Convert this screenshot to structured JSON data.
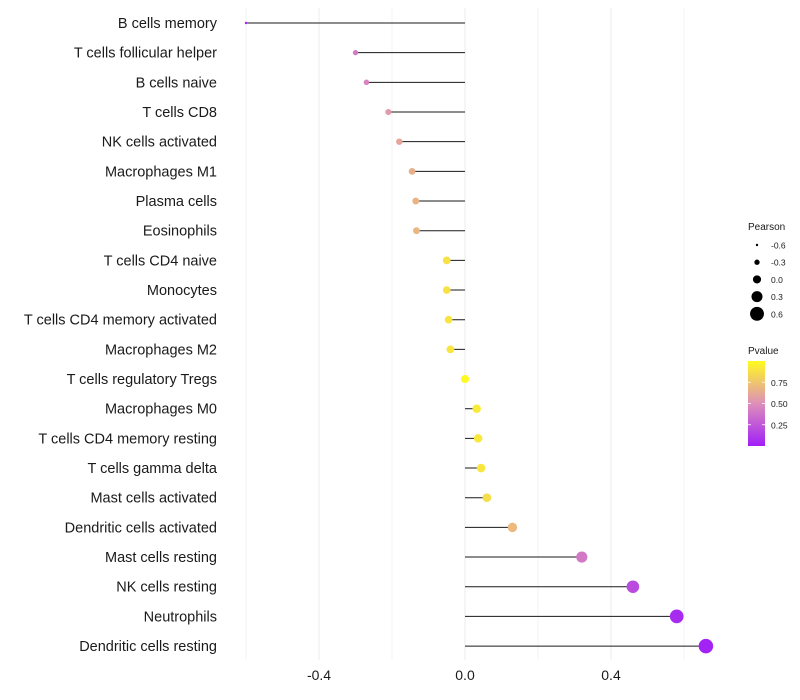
{
  "chart_data": {
    "type": "lollipop",
    "title": "",
    "xlabel": "",
    "ylabel": "",
    "xlim": [
      -0.6,
      0.66
    ],
    "xticks": [
      -0.4,
      0.0,
      0.4
    ],
    "xtick_labels": [
      "-0.4",
      "0.0",
      "0.4"
    ],
    "grid": true,
    "points": [
      {
        "label": "B cells memory",
        "pearson": -0.6,
        "pvalue": 0.01
      },
      {
        "label": "T cells follicular helper",
        "pearson": -0.3,
        "pvalue": 0.4
      },
      {
        "label": "B cells naive",
        "pearson": -0.27,
        "pvalue": 0.45
      },
      {
        "label": "T cells CD8",
        "pearson": -0.21,
        "pvalue": 0.55
      },
      {
        "label": "NK cells activated",
        "pearson": -0.18,
        "pvalue": 0.6
      },
      {
        "label": "Macrophages M1",
        "pearson": -0.145,
        "pvalue": 0.65
      },
      {
        "label": "Plasma cells",
        "pearson": -0.135,
        "pvalue": 0.67
      },
      {
        "label": "Eosinophils",
        "pearson": -0.133,
        "pvalue": 0.68
      },
      {
        "label": "T cells CD4 naive",
        "pearson": -0.05,
        "pvalue": 0.88
      },
      {
        "label": "Monocytes",
        "pearson": -0.05,
        "pvalue": 0.88
      },
      {
        "label": "T cells CD4 memory activated",
        "pearson": -0.045,
        "pvalue": 0.9
      },
      {
        "label": "Macrophages M2",
        "pearson": -0.04,
        "pvalue": 0.9
      },
      {
        "label": "T cells regulatory  Tregs ",
        "pearson": 0.0,
        "pvalue": 0.99
      },
      {
        "label": "Macrophages M0",
        "pearson": 0.032,
        "pvalue": 0.92
      },
      {
        "label": "T cells CD4 memory resting",
        "pearson": 0.036,
        "pvalue": 0.91
      },
      {
        "label": "T cells gamma delta",
        "pearson": 0.044,
        "pvalue": 0.9
      },
      {
        "label": "Mast cells activated",
        "pearson": 0.06,
        "pvalue": 0.86
      },
      {
        "label": "Dendritic cells activated",
        "pearson": 0.13,
        "pvalue": 0.7
      },
      {
        "label": "Mast cells resting",
        "pearson": 0.32,
        "pvalue": 0.4
      },
      {
        "label": "NK cells resting",
        "pearson": 0.46,
        "pvalue": 0.2
      },
      {
        "label": "Neutrophils",
        "pearson": 0.58,
        "pvalue": 0.06
      },
      {
        "label": "Dendritic cells resting",
        "pearson": 0.66,
        "pvalue": 0.02
      }
    ],
    "legend_size": {
      "title": "Pearson",
      "values": [
        -0.6,
        -0.3,
        0.0,
        0.3,
        0.6
      ],
      "labels": [
        "-0.6",
        "-0.3",
        "0.0",
        "0.3",
        "0.6"
      ]
    },
    "legend_color": {
      "title": "Pvalue",
      "labels": [
        "0.75",
        "0.50",
        "0.25"
      ],
      "values": [
        0.75,
        0.5,
        0.25
      ],
      "range": [
        0.0,
        1.0
      ],
      "low_color": "#a11ff7",
      "mid_color": "#de8fba",
      "high_color": "#fffb1f"
    },
    "legend_position": "right"
  },
  "colors": {
    "segment": "#1a1a1a",
    "grid": "#ebebeb",
    "text": "#1a1a1a"
  }
}
